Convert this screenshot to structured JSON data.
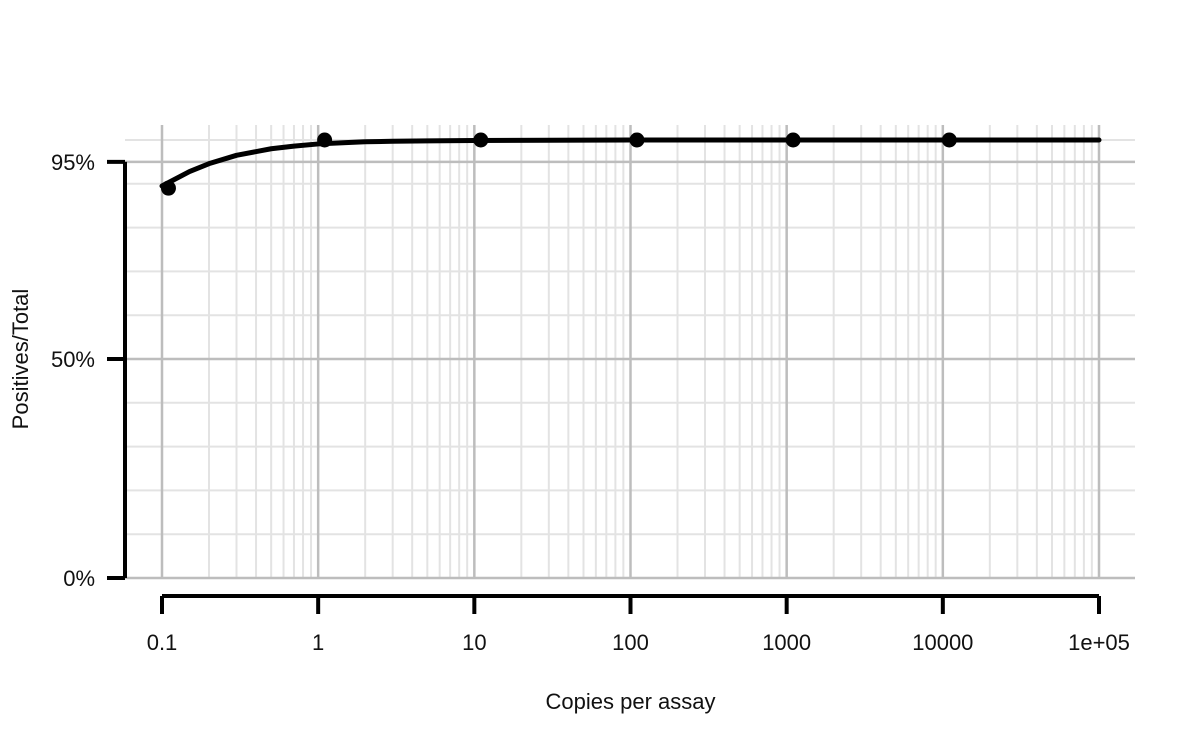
{
  "chart_data": {
    "type": "scatter",
    "title": "",
    "xlabel": "Copies per assay",
    "ylabel": "Positives/Total",
    "x_scale": "log10",
    "xlim": [
      0.1,
      100000
    ],
    "ylim": [
      0,
      100
    ],
    "x_ticks": [
      0.1,
      1,
      10,
      100,
      1000,
      10000,
      100000
    ],
    "x_tick_labels": [
      "0.1",
      "1",
      "10",
      "100",
      "1000",
      "10000",
      "1e+05"
    ],
    "y_ticks": [
      0,
      50,
      95
    ],
    "y_tick_labels": [
      "0%",
      "50%",
      "95%"
    ],
    "y_minor_gridlines": [
      10,
      20,
      30,
      40,
      60,
      70,
      80,
      90,
      100
    ],
    "grid": true,
    "legend": "none",
    "series": [
      {
        "kind": "points",
        "x": [
          0.11,
          1.1,
          11,
          110,
          1100,
          11000
        ],
        "y": [
          89,
          100,
          100,
          100,
          100,
          100
        ]
      },
      {
        "kind": "fitted-curve",
        "x": [
          0.1,
          0.15,
          0.2,
          0.3,
          0.5,
          0.7,
          1,
          1.5,
          2,
          3,
          5,
          10,
          100,
          1000,
          10000,
          100000
        ],
        "y": [
          89.5,
          92.8,
          94.6,
          96.5,
          98.0,
          98.6,
          99.1,
          99.4,
          99.6,
          99.7,
          99.8,
          99.9,
          100,
          100,
          100,
          100
        ]
      }
    ],
    "colors": {
      "marks": "#000000",
      "major_grid": "#bdbdbd",
      "minor_grid": "#e3e3e3"
    }
  }
}
